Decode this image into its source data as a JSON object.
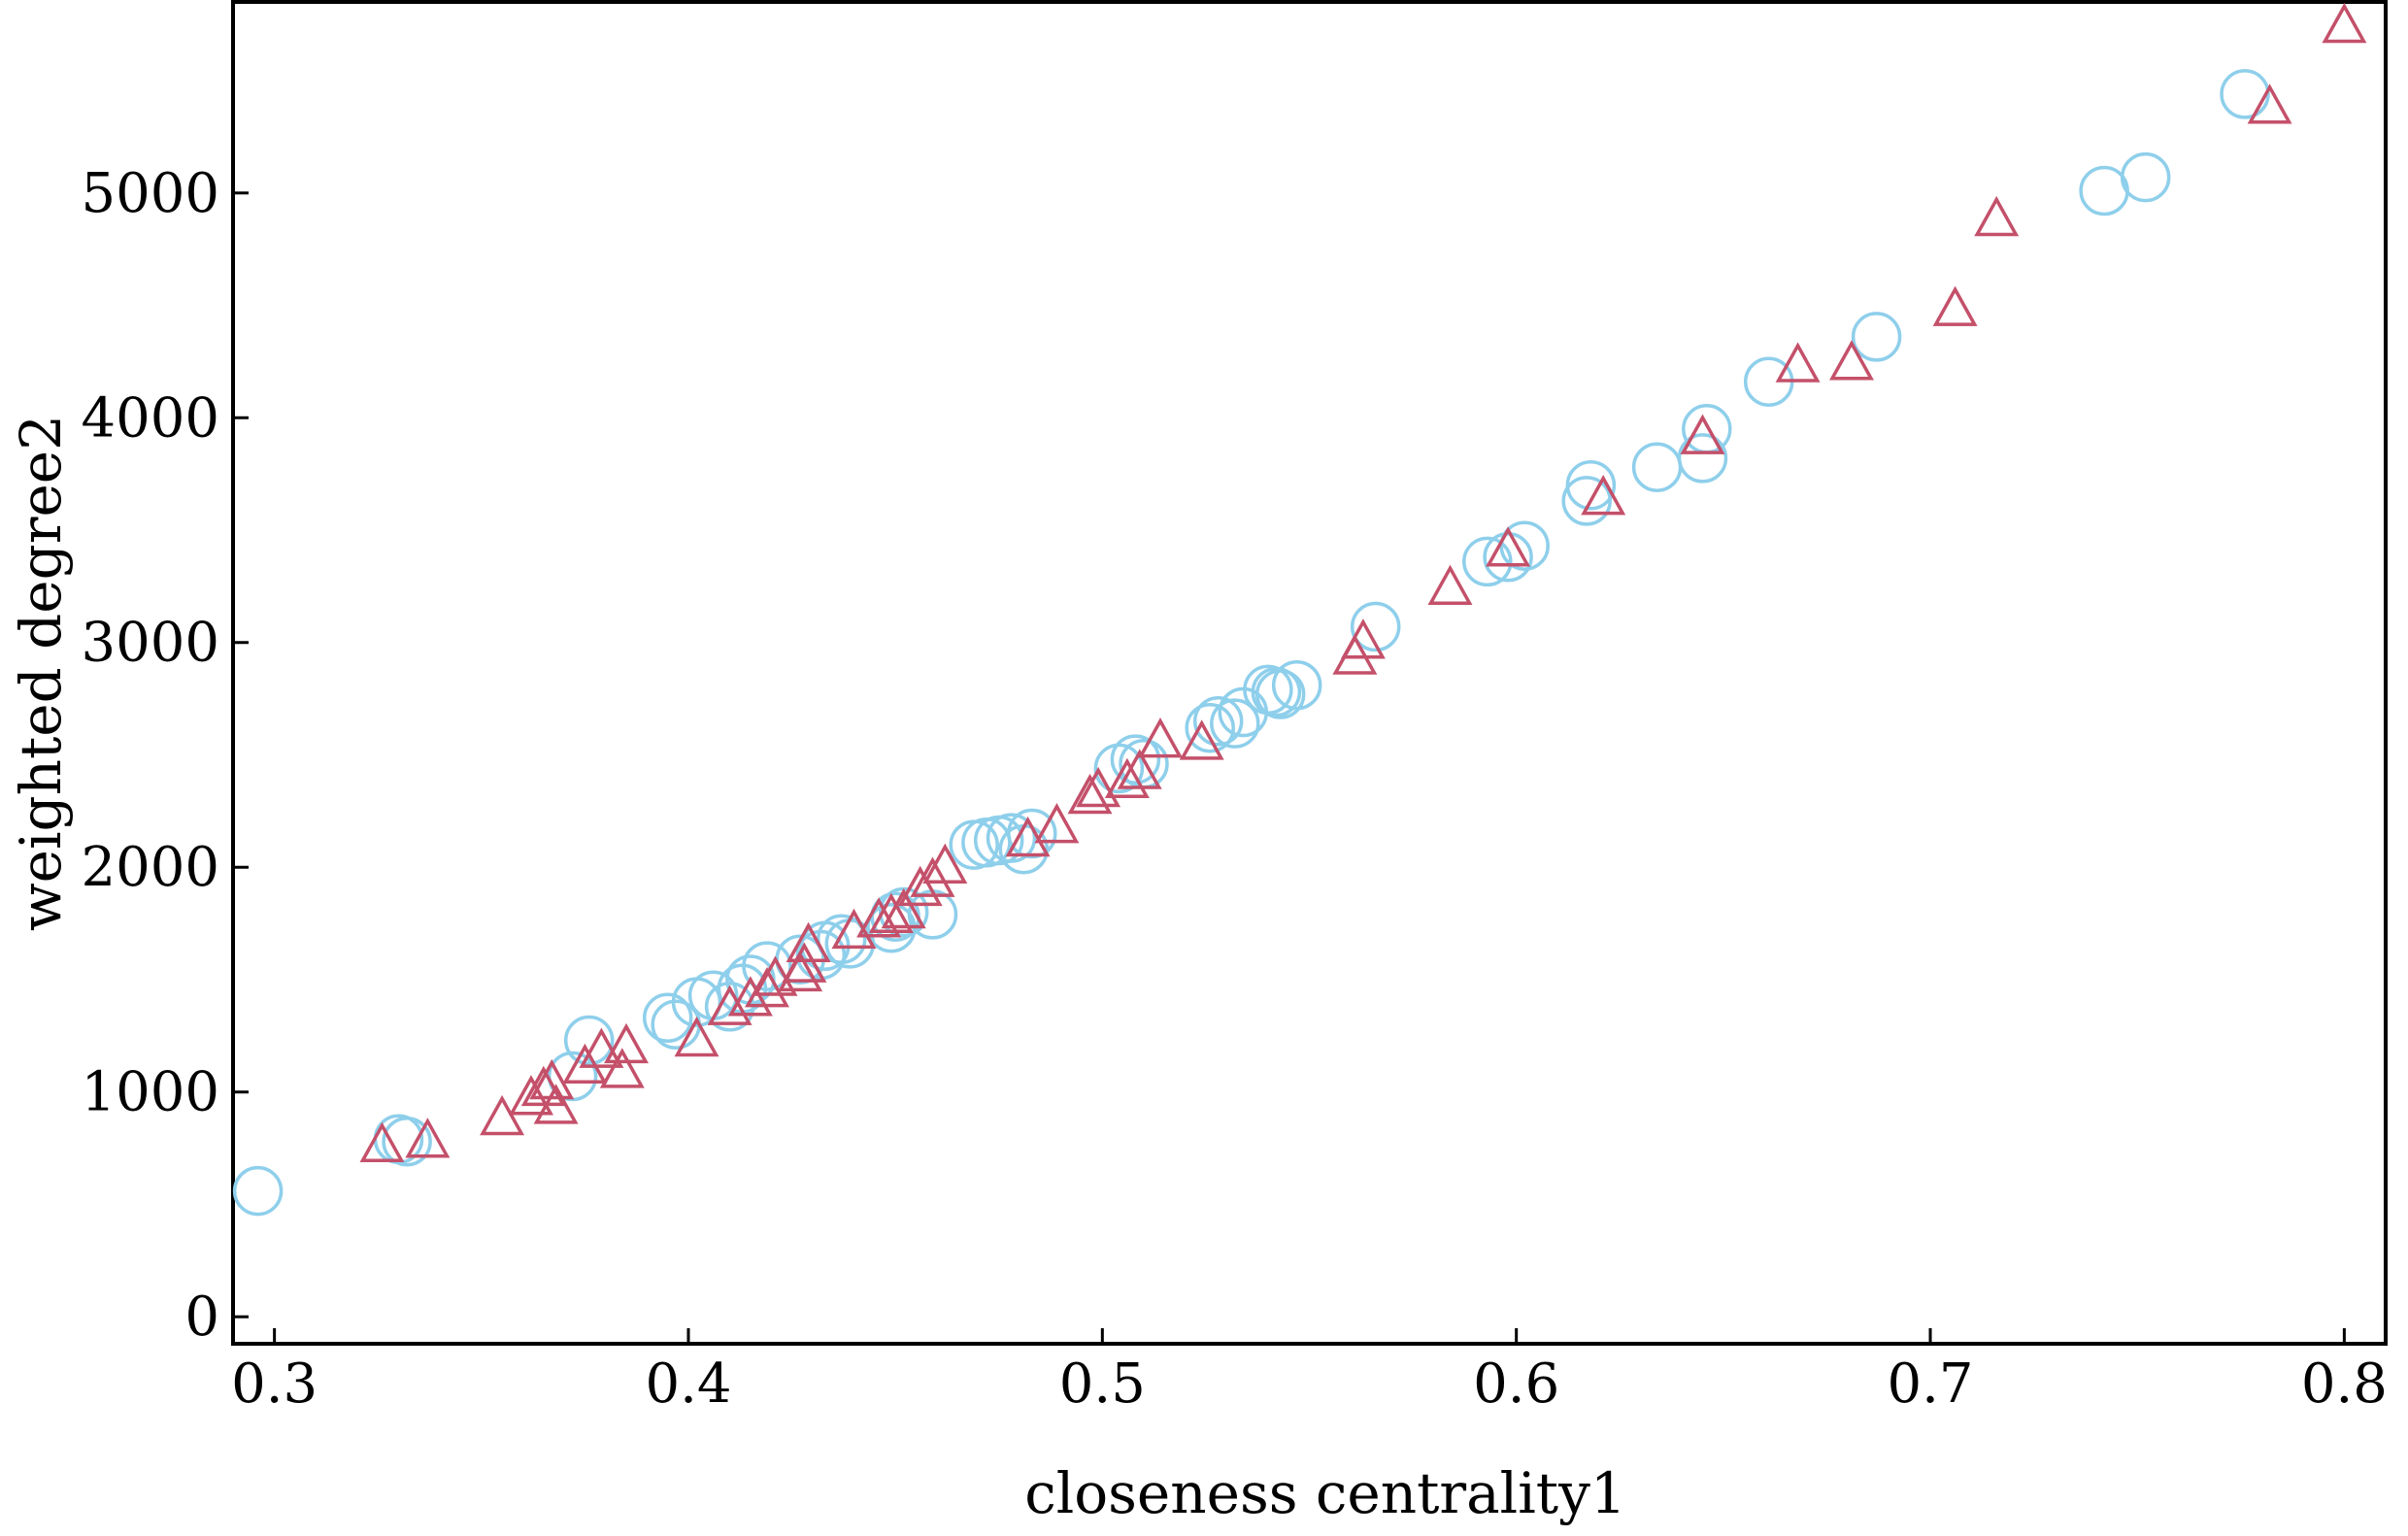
{
  "chart_data": {
    "type": "scatter",
    "xlabel": "closeness centrality1",
    "ylabel": "weighted degree2",
    "xlim": [
      0.29,
      0.81
    ],
    "ylim": [
      -120,
      5850
    ],
    "xticks": [
      0.3,
      0.4,
      0.5,
      0.6,
      0.7,
      0.8
    ],
    "xtick_labels": [
      "0.3",
      "0.4",
      "0.5",
      "0.6",
      "0.7",
      "0.8"
    ],
    "yticks": [
      0,
      1000,
      2000,
      3000,
      4000,
      5000
    ],
    "ytick_labels": [
      "0",
      "1000",
      "2000",
      "3000",
      "4000",
      "5000"
    ],
    "grid": false,
    "series": [
      {
        "marker": "circle",
        "color": "#8ecfeb",
        "points": [
          [
            0.296,
            560
          ],
          [
            0.33,
            790
          ],
          [
            0.332,
            780
          ],
          [
            0.372,
            1070
          ],
          [
            0.376,
            1230
          ],
          [
            0.395,
            1330
          ],
          [
            0.397,
            1300
          ],
          [
            0.402,
            1400
          ],
          [
            0.406,
            1430
          ],
          [
            0.41,
            1380
          ],
          [
            0.413,
            1460
          ],
          [
            0.415,
            1500
          ],
          [
            0.419,
            1560
          ],
          [
            0.427,
            1590
          ],
          [
            0.432,
            1610
          ],
          [
            0.433,
            1650
          ],
          [
            0.437,
            1680
          ],
          [
            0.439,
            1660
          ],
          [
            0.449,
            1730
          ],
          [
            0.45,
            1780
          ],
          [
            0.452,
            1800
          ],
          [
            0.459,
            1790
          ],
          [
            0.469,
            2100
          ],
          [
            0.472,
            2110
          ],
          [
            0.475,
            2120
          ],
          [
            0.478,
            2130
          ],
          [
            0.481,
            2080
          ],
          [
            0.483,
            2150
          ],
          [
            0.504,
            2440
          ],
          [
            0.508,
            2480
          ],
          [
            0.51,
            2460
          ],
          [
            0.526,
            2620
          ],
          [
            0.528,
            2650
          ],
          [
            0.532,
            2640
          ],
          [
            0.534,
            2690
          ],
          [
            0.54,
            2790
          ],
          [
            0.542,
            2780
          ],
          [
            0.543,
            2770
          ],
          [
            0.547,
            2810
          ],
          [
            0.566,
            3070
          ],
          [
            0.593,
            3360
          ],
          [
            0.598,
            3380
          ],
          [
            0.602,
            3430
          ],
          [
            0.617,
            3630
          ],
          [
            0.618,
            3700
          ],
          [
            0.634,
            3780
          ],
          [
            0.645,
            3820
          ],
          [
            0.646,
            3950
          ],
          [
            0.661,
            4160
          ],
          [
            0.687,
            4360
          ],
          [
            0.742,
            5010
          ],
          [
            0.752,
            5070
          ],
          [
            0.776,
            5440
          ]
        ]
      },
      {
        "marker": "triangle",
        "color": "#c4506a",
        "points": [
          [
            0.326,
            760
          ],
          [
            0.337,
            780
          ],
          [
            0.355,
            880
          ],
          [
            0.362,
            970
          ],
          [
            0.365,
            1010
          ],
          [
            0.367,
            1040
          ],
          [
            0.368,
            930
          ],
          [
            0.375,
            1110
          ],
          [
            0.379,
            1180
          ],
          [
            0.384,
            1090
          ],
          [
            0.385,
            1200
          ],
          [
            0.402,
            1230
          ],
          [
            0.41,
            1370
          ],
          [
            0.415,
            1410
          ],
          [
            0.419,
            1450
          ],
          [
            0.421,
            1500
          ],
          [
            0.427,
            1520
          ],
          [
            0.428,
            1560
          ],
          [
            0.429,
            1650
          ],
          [
            0.44,
            1710
          ],
          [
            0.446,
            1760
          ],
          [
            0.449,
            1780
          ],
          [
            0.452,
            1800
          ],
          [
            0.456,
            1900
          ],
          [
            0.459,
            1940
          ],
          [
            0.462,
            2000
          ],
          [
            0.482,
            2120
          ],
          [
            0.489,
            2180
          ],
          [
            0.497,
            2310
          ],
          [
            0.499,
            2340
          ],
          [
            0.506,
            2380
          ],
          [
            0.509,
            2420
          ],
          [
            0.514,
            2560
          ],
          [
            0.524,
            2550
          ],
          [
            0.561,
            2930
          ],
          [
            0.563,
            3000
          ],
          [
            0.584,
            3240
          ],
          [
            0.598,
            3410
          ],
          [
            0.621,
            3640
          ],
          [
            0.645,
            3910
          ],
          [
            0.668,
            4230
          ],
          [
            0.681,
            4240
          ],
          [
            0.706,
            4480
          ],
          [
            0.716,
            4880
          ],
          [
            0.782,
            5380
          ],
          [
            0.8,
            5740
          ]
        ]
      }
    ]
  }
}
